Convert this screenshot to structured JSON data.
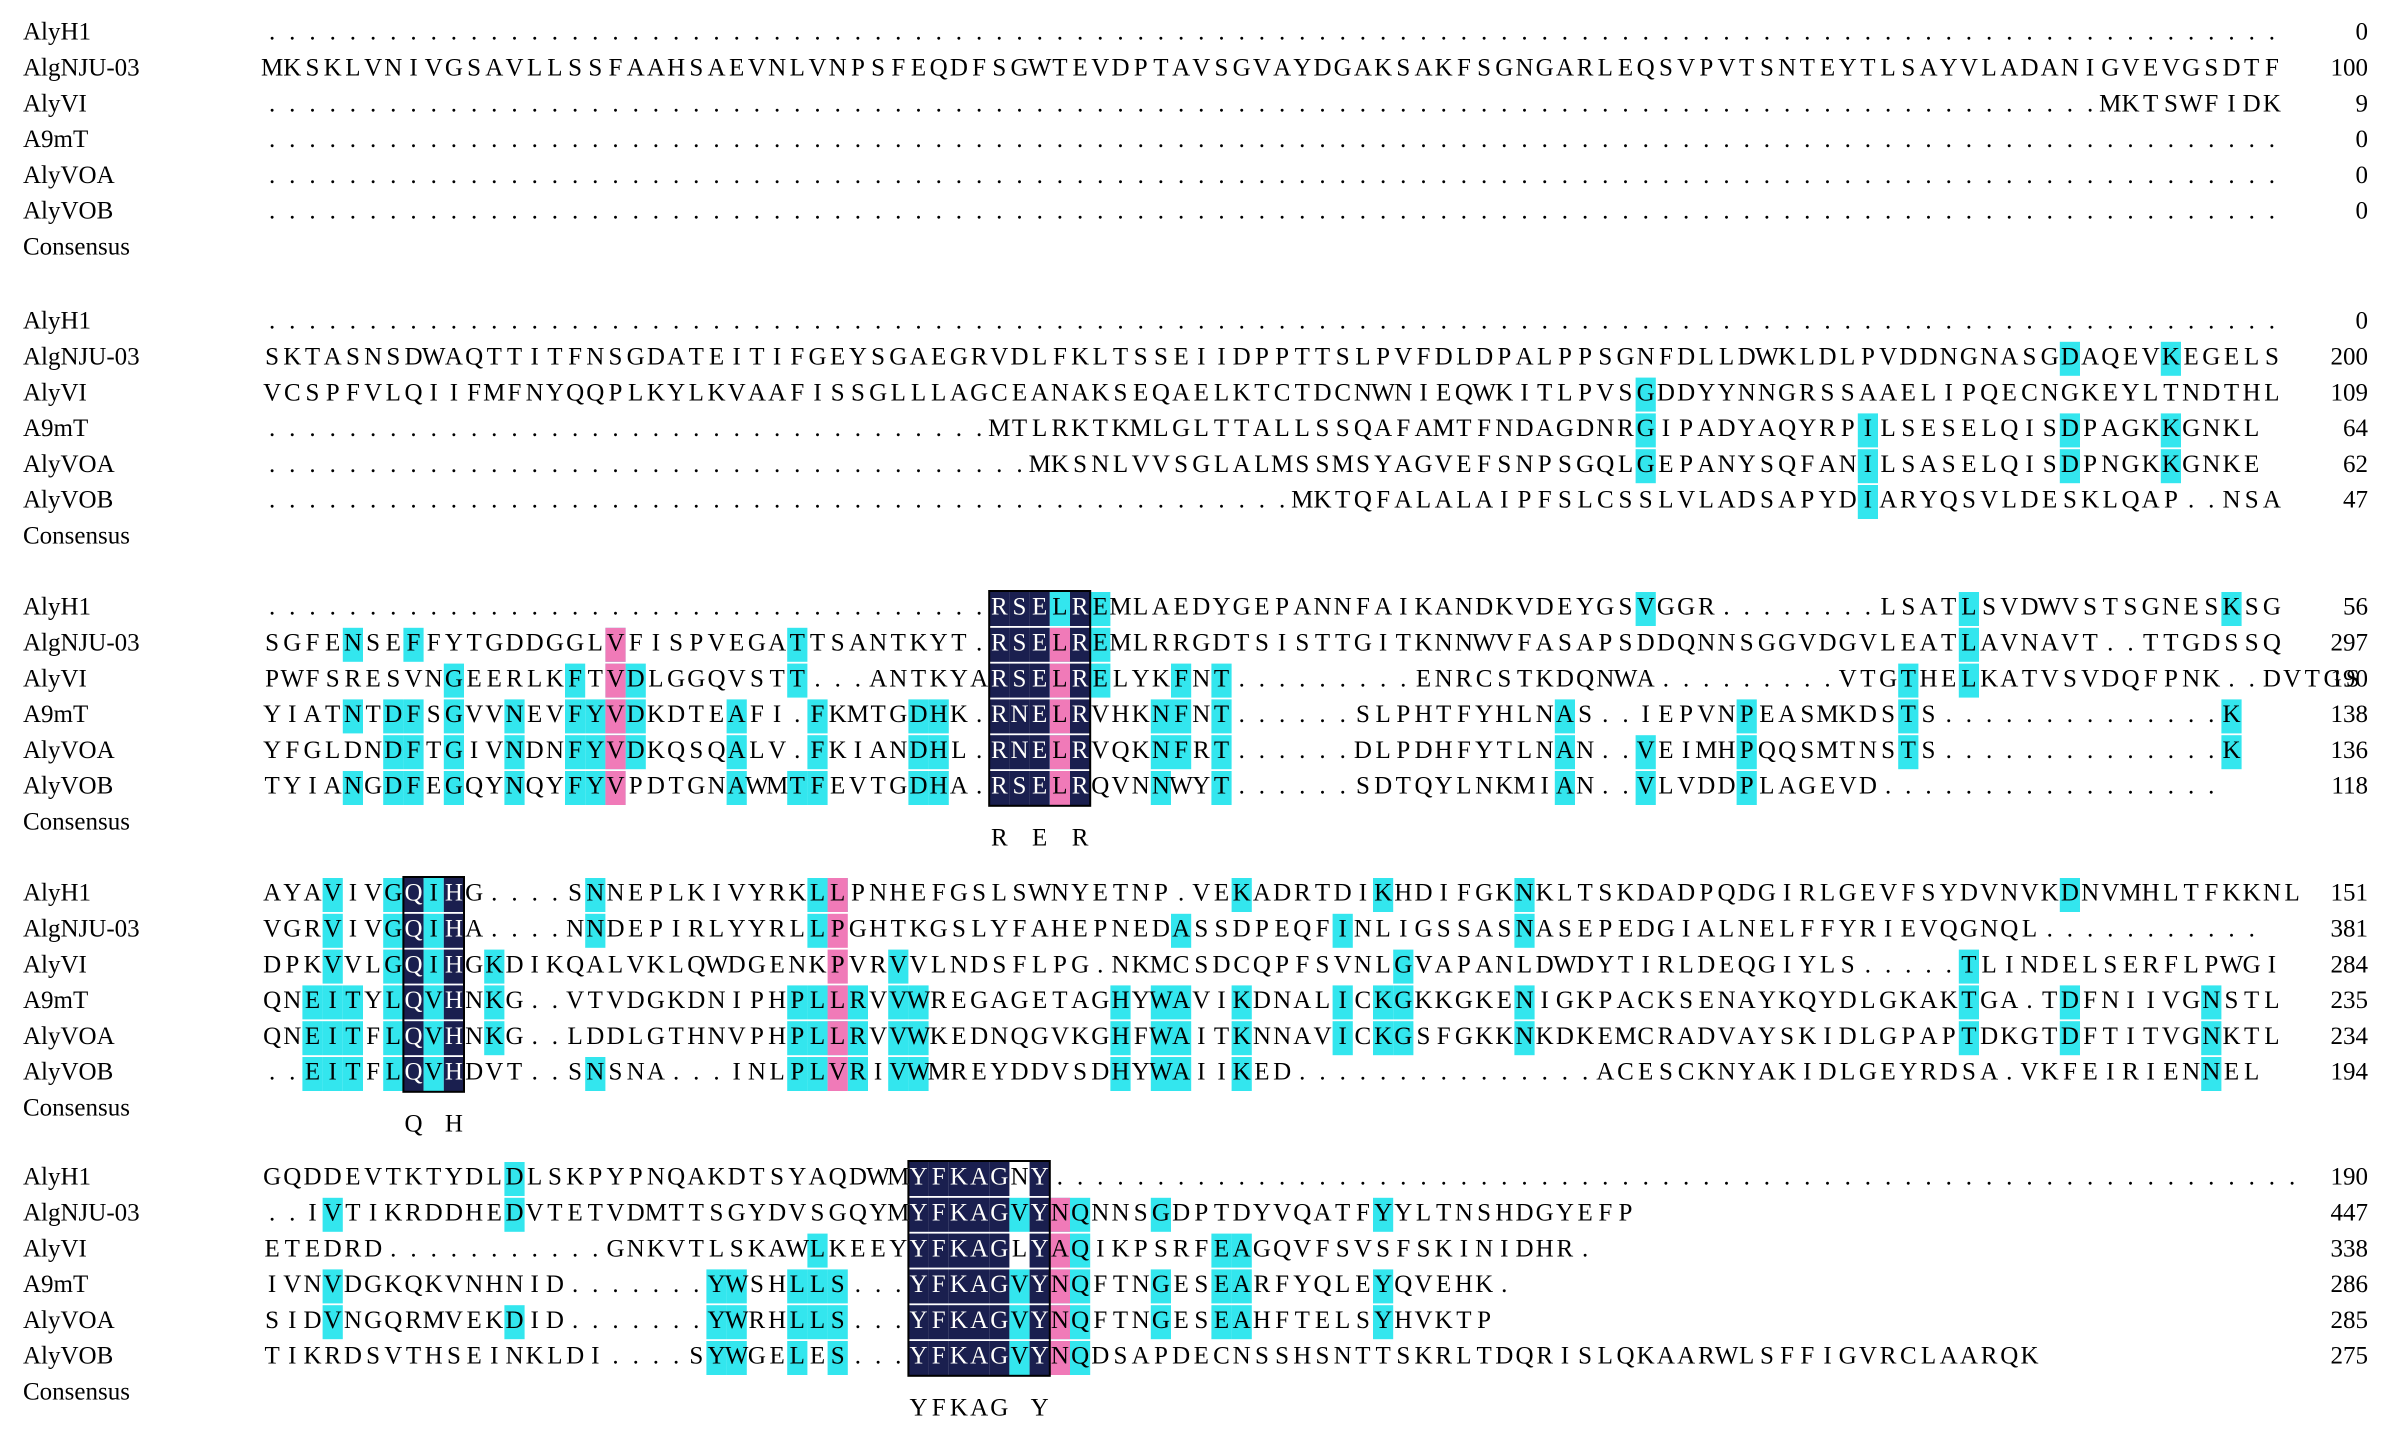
{
  "alignment": {
    "blocks": [
      {
        "rows": [
          {
            "name": "AlyH1",
            "seq": "....................................................................................................",
            "end": "0"
          },
          {
            "name": "AlgNJU-03",
            "seq": "MKSKLVNIVGSAVLLSSFAAHSAEVNLVNPSFEQDFSGWTEVDPTAVSGVAYDGAKSAKFSGNGARLEQSVPVTSNTEYTLSAYVLADANIGVEVGSDTF",
            "end": "100"
          },
          {
            "name": "AlyVI",
            "seq": "...........................................................................................MKTSWFIDK",
            "end": "9"
          },
          {
            "name": "A9mT",
            "seq": "....................................................................................................",
            "end": "0"
          },
          {
            "name": "AlyVOA",
            "seq": "....................................................................................................",
            "end": "0"
          },
          {
            "name": "AlyVOB",
            "seq": "....................................................................................................",
            "end": "0"
          }
        ],
        "consensus_label": "Consensus",
        "consensus": ""
      },
      {
        "rows": [
          {
            "name": "AlyH1",
            "seq": "....................................................................................................",
            "end": "0"
          },
          {
            "name": "AlgNJU-03",
            "seq": "SKTASNSDWAQTTITFNSGDATEITIFGEYSGAEGRVDLFKLTSSEIIDPPTTSLPVFDLDPALPPSGNFDLLDWKLDLPVDDNGNASGDAQEVKEGELS",
            "end": "200"
          },
          {
            "name": "AlyVI",
            "seq": "VCSPFVLQIIFMFNYQQPLKYLKVAAFISSGLLLAGCEANAKSEQAELKTCTDCNWNIEQWKITLPVSGDDYYNNGRSSAAELIPQECNGKEYLTNDTHL",
            "end": "109"
          },
          {
            "name": "A9mT",
            "seq": "....................................MTLRKTKMLGLTTALLSSQAFAMTFNDAGDNRGIPADYAQYRPILSESELQISDPAGKKGNKL",
            "end": "64"
          },
          {
            "name": "AlyVOA",
            "seq": "......................................MKSNLVVSGLALMSSMSYAGVEFSNPSGQLGEPANYSQFANILSASELQISDPNGKKGNKE",
            "end": "62"
          },
          {
            "name": "AlyVOB",
            "seq": "...................................................MKTQFALALAIPFSLCSSLVLADSAPYDIARYQSVLDESKLQAP..NSA",
            "end": "47"
          }
        ],
        "consensus_label": "Consensus",
        "consensus": ""
      },
      {
        "rows": [
          {
            "name": "AlyH1",
            "seq": "....................................RSELREMLAEDYGEPANNFAIKANDKVDEYGSVGGR........LSATLSVDWVSTSGNESKSG",
            "end": "56"
          },
          {
            "name": "AlgNJU-03",
            "seq": "SGFENSEFFYTGDDGGLVFISPVEGATTSANTKYT.RSELREMLRRGDTSISTTGITKNNWVFASAPSDDQNNSGGVDGVLEATLAVNAVT..TTGDSSQ",
            "end": "297"
          },
          {
            "name": "AlyVI",
            "seq": "PWFSRESVNGEERLKFTVDLGGQVSTT...ANTKYARSELRELYKFNT.........ENRCSTKDQNWA.........VTGTHELKATVSVDQFPNK..DVTGS",
            "end": "190"
          },
          {
            "name": "A9mT",
            "seq": "YIATNTDFSGVVNEVFYVDKDTEAFI.FKMTGDHK.RNELRVHKNFNT......SLPHTFYHLNAS..IEPVNPEASMKDSTS..............K",
            "end": "138"
          },
          {
            "name": "AlyVOA",
            "seq": "YFGLDNDFTGIVNDNFYVDKQSQALV.FKIANDHL.RNELRVQKNFRT......DLPDHFYTLNAN..VEIMHPQQSMTNSTS..............K",
            "end": "136"
          },
          {
            "name": "AlyVOB",
            "seq": "TYIANGDFEGQYNQYFYVPDTGNAWMTFEVTGDHA.RSELRQVNNWYT......SDTQYLNKMIAN..VLVDDPLAGEVD.................",
            "end": "118"
          }
        ],
        "consensus_label": "Consensus",
        "consensus": "                                    R E R"
      },
      {
        "rows": [
          {
            "name": "AlyH1",
            "seq": "AYAVIVGQIHG....SNNEPLKIVYRKLLPNHEFGSLSWNYETNP.VEKADRTDIKHDIFGKNKLTSKDADPQDGIRLGEVFSYDVNVKDNVMHLTFKKNL",
            "end": "151"
          },
          {
            "name": "AlgNJU-03",
            "seq": "VGRVIVGQIHA....NNDEPIRLYYRLLPGHTKGSLYFAHEPNEDASSDPEQFINLIGSSASNASEPEDGIALNELFFYRIEVQGNQL...........",
            "end": "381"
          },
          {
            "name": "AlyVI",
            "seq": "DPKVVLGQIHGKDIKQALVKLQWDGENKPVRVVLNDSFLPG.NKMCSDCQPFSVNLGVAPANLDWDYTIRLDEQGIYLS.....TLINDELSERFLPWGI",
            "end": "284"
          },
          {
            "name": "A9mT",
            "seq": "QNEITYLQVHNKG..VTVDGKDNIPHPLLRVVWREGAGETAGHYWAVIKDNALICKGKKGKENIGKPACKSENAYKQYDLGKAKTGA.TDFNIIVGNSTL",
            "end": "235"
          },
          {
            "name": "AlyVOA",
            "seq": "QNEITFLQVHNKG..LDDLGTHNVPHPLLRVVWKEDNQGVKGHFWAITKNNAVICKGSFGKKNKDKEMCRADVAYSKIDLGPAPTDKGTDFTITVGNKTL",
            "end": "234"
          },
          {
            "name": "AlyVOB",
            "seq": "..EITFLQVHDVT..SNSNA...INLPLVRIVWMREYDDVSDHYWAIIKED...............ACESCKNYAKIDLGEYRDSA.VKFEIRIENNEL",
            "end": "194"
          }
        ],
        "consensus_label": "Consensus",
        "consensus": "       Q H"
      },
      {
        "rows": [
          {
            "name": "AlyH1",
            "seq": "GQDDEVTKTYDLDLSKPYPNQAKDTSYAQDWMYFKAGNY..............................................................",
            "end": "190"
          },
          {
            "name": "AlgNJU-03",
            "seq": "..IVTIKRDDHEDVTETVDMTTSGYDVSGQYMYFKAGVYNQNNSGDPTDYVQATFYYLTNSHDGYEFP",
            "end": "447"
          },
          {
            "name": "AlyVI",
            "seq": "ETEDRD...........GNKVTLSKAWLKEEYYFKAGLYAQIKPSRFEAGQVFSVSFSKINIDHR.",
            "end": "338"
          },
          {
            "name": "A9mT",
            "seq": "IVNVDGKQKVNHNID.......YWSHLLS...YFKAGVYNQFTNGESEARFYQLEYQVEHK.",
            "end": "286"
          },
          {
            "name": "AlyVOA",
            "seq": "SIDVNGQRMVEKDID.......YWRHLLS...YFKAGVYNQFTNGESEAHFTELSYHVKTP",
            "end": "285"
          },
          {
            "name": "AlyVOB",
            "seq": "TIKRDSVTHSEINKLDI....SYWGELES...YFKAGVYNQDSAPDECNSSHSNTTSKRLTDQRISLQKAARWLSFFIGVRCLAARQK",
            "end": "275"
          }
        ],
        "consensus_label": "Consensus",
        "consensus": "                                YFKAG Y"
      }
    ]
  }
}
